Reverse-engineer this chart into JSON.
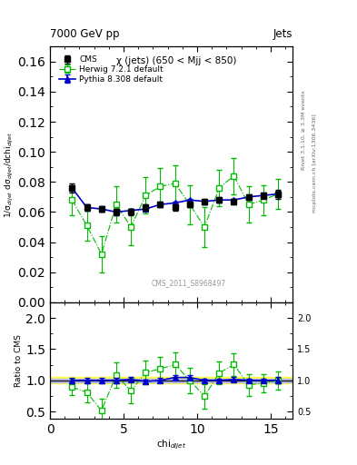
{
  "title_left": "7000 GeV pp",
  "title_right": "Jets",
  "annotation": "χ (jets) (650 < Mjj < 850)",
  "watermark": "CMS_2011_S8968497",
  "right_label_top": "Rivet 3.1.10, ≥ 3.3M events",
  "right_label_bottom": "mcplots.cern.ch [arXiv:1306.3436]",
  "ylabel_main": "1/σ$_{dijet}$ dσ$_{dijet}$/dchi$_{dijet}$",
  "ylabel_ratio": "Ratio to CMS",
  "xlabel": "chi$_{dijet}$",
  "ylim_main": [
    0.0,
    0.17
  ],
  "ylim_ratio": [
    0.39,
    2.25
  ],
  "yticks_main": [
    0.0,
    0.02,
    0.04,
    0.06,
    0.08,
    0.1,
    0.12,
    0.14,
    0.16
  ],
  "yticks_ratio": [
    0.5,
    1.0,
    1.5,
    2.0
  ],
  "xlim": [
    0,
    16.5
  ],
  "xticks": [
    0,
    5,
    10,
    15
  ],
  "cms_x": [
    1.5,
    2.5,
    3.5,
    4.5,
    5.5,
    6.5,
    7.5,
    8.5,
    9.5,
    10.5,
    11.5,
    12.5,
    13.5,
    14.5,
    15.5
  ],
  "cms_y": [
    0.076,
    0.063,
    0.062,
    0.06,
    0.06,
    0.063,
    0.065,
    0.063,
    0.065,
    0.067,
    0.068,
    0.067,
    0.07,
    0.071,
    0.072
  ],
  "cms_yerr": [
    0.003,
    0.002,
    0.002,
    0.002,
    0.002,
    0.002,
    0.002,
    0.002,
    0.002,
    0.002,
    0.002,
    0.002,
    0.002,
    0.002,
    0.003
  ],
  "herwig_x": [
    1.5,
    2.5,
    3.5,
    4.5,
    5.5,
    6.5,
    7.5,
    8.5,
    9.5,
    10.5,
    11.5,
    12.5,
    13.5,
    14.5,
    15.5
  ],
  "herwig_y": [
    0.068,
    0.051,
    0.032,
    0.065,
    0.05,
    0.071,
    0.077,
    0.079,
    0.065,
    0.05,
    0.076,
    0.084,
    0.065,
    0.068,
    0.072
  ],
  "herwig_yerr": [
    0.01,
    0.01,
    0.012,
    0.012,
    0.012,
    0.012,
    0.012,
    0.012,
    0.013,
    0.013,
    0.012,
    0.012,
    0.012,
    0.01,
    0.01
  ],
  "pythia_x": [
    1.5,
    2.5,
    3.5,
    4.5,
    5.5,
    6.5,
    7.5,
    8.5,
    9.5,
    10.5,
    11.5,
    12.5,
    13.5,
    14.5,
    15.5
  ],
  "pythia_y": [
    0.076,
    0.063,
    0.062,
    0.06,
    0.061,
    0.062,
    0.065,
    0.066,
    0.068,
    0.067,
    0.068,
    0.068,
    0.07,
    0.071,
    0.072
  ],
  "pythia_yerr": [
    0.002,
    0.002,
    0.002,
    0.002,
    0.001,
    0.001,
    0.001,
    0.001,
    0.001,
    0.001,
    0.001,
    0.001,
    0.001,
    0.001,
    0.002
  ],
  "cms_color": "#000000",
  "herwig_color": "#00bb00",
  "pythia_color": "#0000cc",
  "band_color_yellow": "#ffff44",
  "band_color_blue": "#aaaaff"
}
